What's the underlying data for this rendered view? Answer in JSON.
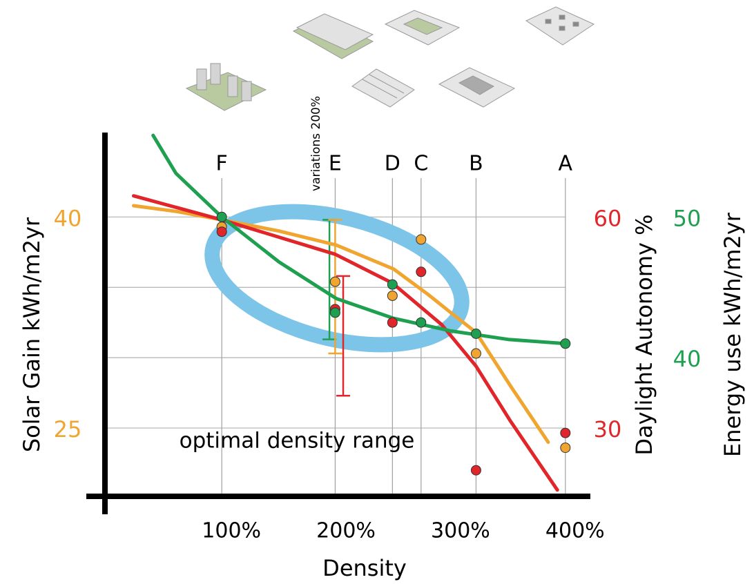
{
  "chart_data": {
    "type": "line",
    "x_label": "Density",
    "xlim": [
      -2,
      420
    ],
    "xticks": [
      {
        "value": 100,
        "label": "100%"
      },
      {
        "value": 200,
        "label": "200%"
      },
      {
        "value": 300,
        "label": "300%"
      },
      {
        "value": 400,
        "label": "400%"
      }
    ],
    "y_label": "Solar Gain kWh/m2yr",
    "ylim": [
      20,
      46
    ],
    "yticks": [
      40,
      25
    ],
    "ygrid": [
      40,
      35,
      30,
      25
    ],
    "y_color": "#f0a530",
    "y2_label": "Daylight Autonomy %",
    "y2lim": [
      20,
      72
    ],
    "y2ticks": [
      60,
      30
    ],
    "y2_color": "#e0262a",
    "y3_label": "Energy use kWh/m2yr",
    "y3lim": [
      30,
      56
    ],
    "y3ticks": [
      50,
      40
    ],
    "y3_color": "#1fa050",
    "building_types": {
      "labels": [
        "F",
        "E",
        "D",
        "C",
        "B",
        "A"
      ],
      "x": [
        100,
        199,
        249,
        274,
        322,
        400
      ]
    },
    "series": [
      {
        "axis": "y",
        "color": "#f0a530",
        "curve": {
          "x": [
            23,
            60,
            100,
            150,
            200,
            250,
            280,
            300,
            322,
            352,
            385
          ],
          "values": [
            40.8,
            40.4,
            39.8,
            39,
            38,
            36.3,
            34.5,
            33.2,
            31.8,
            28,
            24
          ]
        },
        "points": {
          "x": [
            100,
            199,
            249,
            274,
            322,
            400
          ],
          "values": [
            39.3,
            35.4,
            34.4,
            38.4,
            30.3,
            23.6
          ]
        }
      },
      {
        "axis": "y2",
        "color": "#e0262a",
        "curve": {
          "x": [
            23,
            100,
            199,
            249,
            292,
            322,
            352,
            393
          ],
          "values": [
            63,
            59.6,
            54.7,
            50.6,
            44.7,
            38.8,
            31,
            21.2
          ]
        },
        "points": {
          "x": [
            100,
            199,
            249,
            274,
            322,
            400
          ],
          "values": [
            57.9,
            46.9,
            45,
            52.2,
            24,
            29.3
          ]
        }
      },
      {
        "axis": "y3",
        "color": "#1fa050",
        "curve": {
          "x": [
            40,
            60,
            100,
            150,
            200,
            250,
            300,
            350,
            400
          ],
          "values": [
            55.8,
            53.1,
            50,
            46.8,
            44.2,
            42.8,
            41.9,
            41.3,
            41
          ]
        },
        "points": {
          "x": [
            100,
            199,
            249,
            274,
            322,
            400
          ],
          "values": [
            50,
            43.2,
            45.2,
            42.5,
            41.7,
            41
          ]
        }
      }
    ],
    "error_bars": [
      {
        "axis": "y3",
        "color": "#1fa050",
        "x": 194,
        "low": 41.3,
        "high": 49.8
      },
      {
        "axis": "y",
        "color": "#f0a530",
        "x": 199,
        "low": 30.3,
        "high": 39.8
      },
      {
        "axis": "y2",
        "color": "#e0262a",
        "x": 206,
        "low": 34.6,
        "high": 51.6
      }
    ],
    "annotations": [
      "variations 200%",
      "optimal density range"
    ]
  }
}
